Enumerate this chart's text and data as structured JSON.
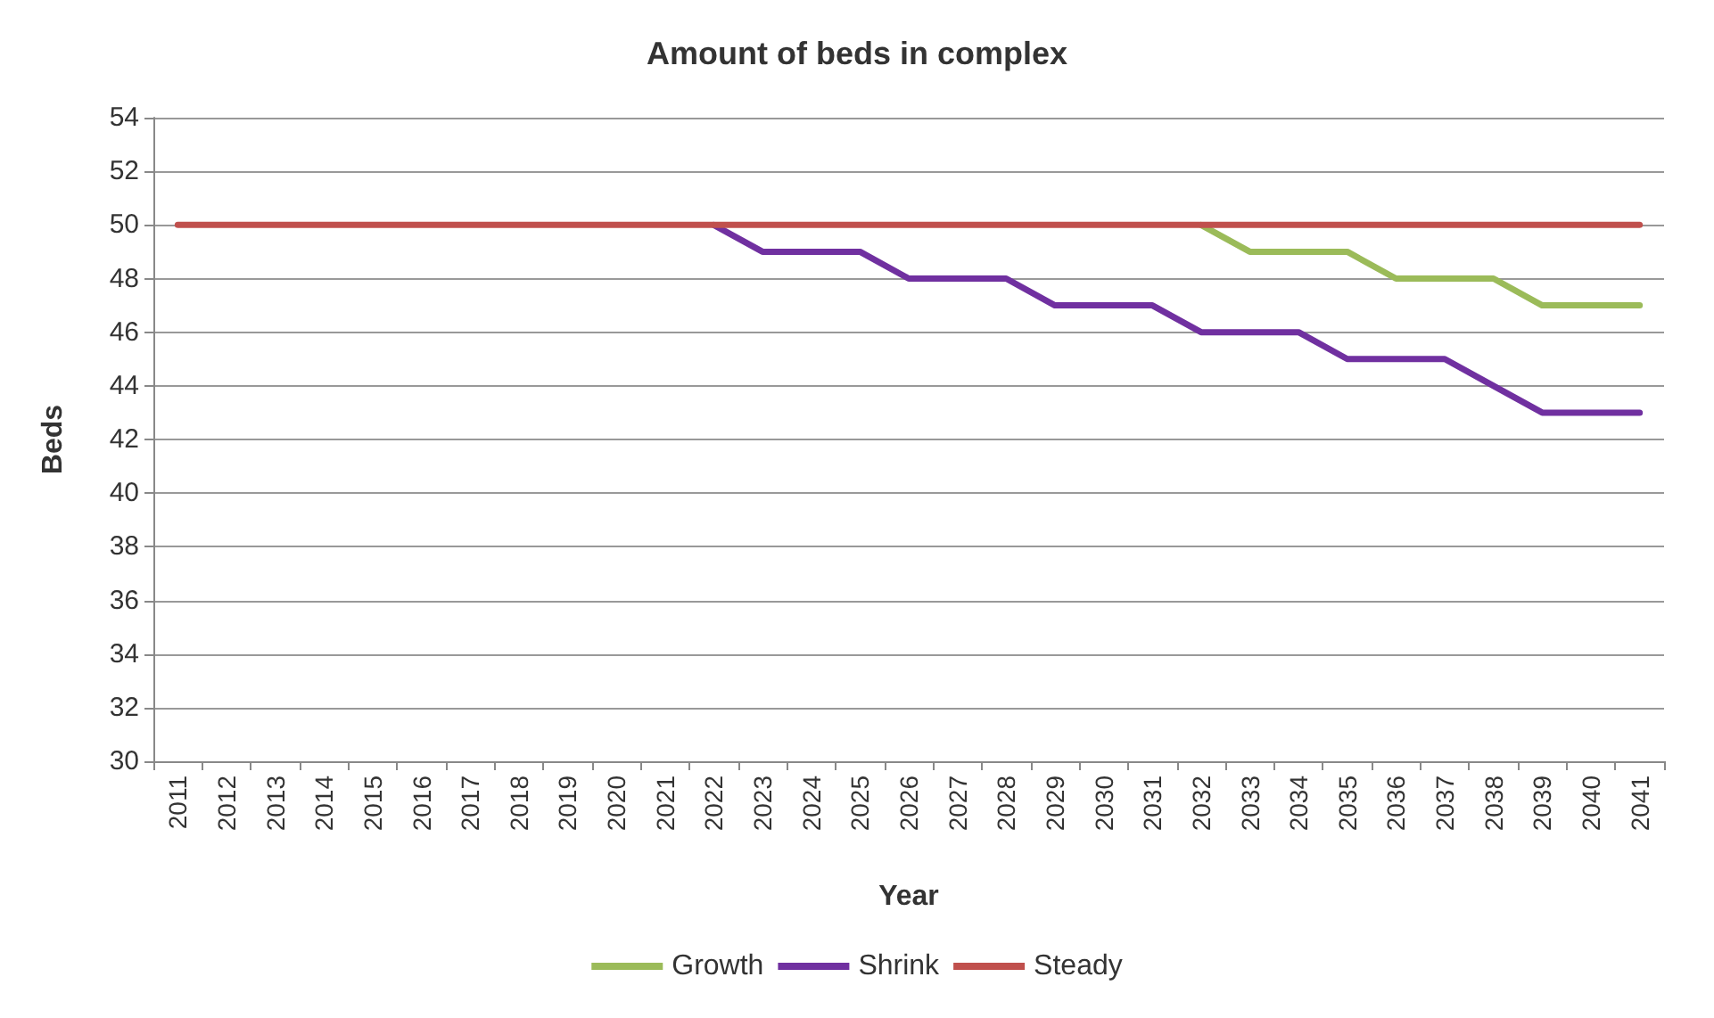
{
  "chart_data": {
    "type": "line",
    "title": "Amount of beds in complex",
    "xlabel": "Year",
    "ylabel": "Beds",
    "categories": [
      "2011",
      "2012",
      "2013",
      "2014",
      "2015",
      "2016",
      "2017",
      "2018",
      "2019",
      "2020",
      "2021",
      "2022",
      "2023",
      "2024",
      "2025",
      "2026",
      "2027",
      "2028",
      "2029",
      "2030",
      "2031",
      "2032",
      "2033",
      "2034",
      "2035",
      "2036",
      "2037",
      "2038",
      "2039",
      "2040",
      "2041"
    ],
    "series": [
      {
        "name": "Growth",
        "color": "#9bbb59",
        "values": [
          null,
          null,
          null,
          null,
          null,
          null,
          null,
          null,
          null,
          null,
          null,
          null,
          null,
          null,
          null,
          null,
          null,
          null,
          null,
          null,
          null,
          50,
          49,
          49,
          49,
          48,
          48,
          48,
          47,
          47,
          47
        ]
      },
      {
        "name": "Shrink",
        "color": "#7030a0",
        "values": [
          null,
          null,
          null,
          null,
          null,
          null,
          null,
          null,
          null,
          null,
          null,
          50,
          49,
          49,
          49,
          48,
          48,
          48,
          47,
          47,
          47,
          46,
          46,
          46,
          45,
          45,
          45,
          44,
          43,
          43,
          43
        ]
      },
      {
        "name": "Steady",
        "color": "#c0504d",
        "values": [
          50,
          50,
          50,
          50,
          50,
          50,
          50,
          50,
          50,
          50,
          50,
          50,
          50,
          50,
          50,
          50,
          50,
          50,
          50,
          50,
          50,
          50,
          50,
          50,
          50,
          50,
          50,
          50,
          50,
          50,
          50
        ]
      }
    ],
    "ylim": [
      30,
      54
    ],
    "yticks": [
      30,
      32,
      34,
      36,
      38,
      40,
      42,
      44,
      46,
      48,
      50,
      52,
      54
    ],
    "grid": "y",
    "legend": "bottom",
    "marker": "none",
    "line_style": "solid"
  }
}
